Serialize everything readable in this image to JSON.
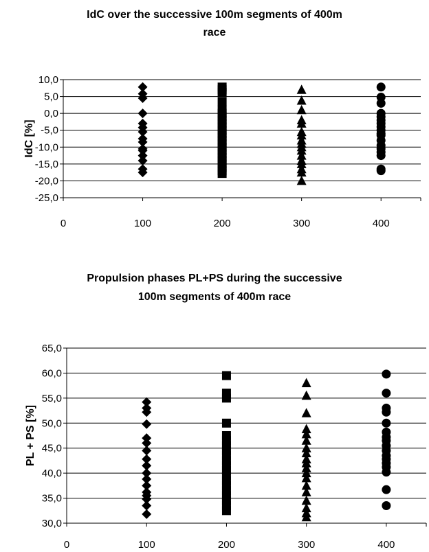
{
  "chart_data": [
    {
      "type": "scatter",
      "title": [
        "IdC over the successive 100m segments of 400m",
        "race"
      ],
      "xlabel": "",
      "ylabel": "IdC [%]",
      "xlim": [
        0,
        450
      ],
      "ylim": [
        -25,
        10
      ],
      "x_ticks": [
        0,
        100,
        200,
        300,
        400
      ],
      "x_tick_labels": [
        "0",
        "100",
        "200",
        "300",
        "400"
      ],
      "y_ticks": [
        10,
        5,
        0,
        -5,
        -10,
        -15,
        -20,
        -25
      ],
      "y_tick_labels": [
        "10,0",
        "5,0",
        "0,0",
        "-5,0",
        "-10,0",
        "-15,0",
        "-20,0",
        "-25,0"
      ],
      "grid": true,
      "series": [
        {
          "marker": "diamond",
          "color": "#000000",
          "x": 100,
          "values": [
            7.8,
            5.8,
            4.5,
            0.0,
            -3.0,
            -4.2,
            -5.5,
            -7.5,
            -8.5,
            -10.5,
            -11.0,
            -12.5,
            -14.0,
            -16.5,
            -17.5
          ]
        },
        {
          "marker": "square",
          "color": "#000000",
          "x": 200,
          "values": [
            7.8,
            7.0,
            6.2,
            3.5,
            1.0,
            0.0,
            -1.0,
            -2.0,
            -3.0,
            -4.0,
            -5.0,
            -6.0,
            -7.0,
            -8.0,
            -9.0,
            -10.0,
            -11.0,
            -12.0,
            -13.0,
            -14.0,
            -15.0,
            -16.0,
            -17.0,
            -17.8
          ]
        },
        {
          "marker": "triangle",
          "color": "#000000",
          "x": 300,
          "values": [
            7.0,
            3.8,
            1.0,
            -2.0,
            -3.0,
            -5.5,
            -6.5,
            -8.0,
            -9.0,
            -10.0,
            -11.0,
            -12.5,
            -14.0,
            -15.0,
            -16.5,
            -17.5,
            -20.0
          ]
        },
        {
          "marker": "circle",
          "color": "#000000",
          "x": 400,
          "values": [
            7.8,
            4.8,
            3.0,
            0.0,
            -1.0,
            -2.0,
            -3.0,
            -4.0,
            -5.0,
            -6.0,
            -6.5,
            -8.0,
            -9.5,
            -10.5,
            -11.5,
            -12.5,
            -16.5,
            -17.0
          ]
        }
      ]
    },
    {
      "type": "scatter",
      "title": [
        "Propulsion phases PL+PS during the successive",
        "100m segments of 400m race"
      ],
      "xlabel": "",
      "ylabel": "PL + PS [%]",
      "xlim": [
        0,
        450
      ],
      "ylim": [
        30,
        65
      ],
      "x_ticks": [
        0,
        100,
        200,
        300,
        400
      ],
      "x_tick_labels": [
        "0",
        "100",
        "200",
        "300",
        "400"
      ],
      "y_ticks": [
        65,
        60,
        55,
        50,
        45,
        40,
        35,
        30
      ],
      "y_tick_labels": [
        "65,0",
        "60,0",
        "55,0",
        "50,0",
        "45,0",
        "40,0",
        "35,0",
        "30,0"
      ],
      "grid": true,
      "series": [
        {
          "marker": "diamond",
          "color": "#000000",
          "x": 100,
          "values": [
            54.2,
            53.0,
            52.2,
            49.8,
            47.0,
            46.0,
            44.5,
            42.8,
            41.5,
            40.0,
            38.8,
            37.5,
            36.2,
            35.5,
            34.8,
            33.5,
            31.8
          ]
        },
        {
          "marker": "square",
          "color": "#000000",
          "x": 200,
          "values": [
            59.5,
            56.0,
            55.0,
            50.0,
            47.5,
            46.5,
            45.5,
            44.5,
            43.5,
            42.5,
            41.5,
            40.5,
            39.5,
            38.5,
            37.5,
            36.5,
            35.5,
            34.5,
            33.5,
            32.5
          ]
        },
        {
          "marker": "triangle",
          "color": "#000000",
          "x": 300,
          "values": [
            58.0,
            55.5,
            52.0,
            48.8,
            47.8,
            46.5,
            45.0,
            44.0,
            42.8,
            42.0,
            41.0,
            40.0,
            39.0,
            37.5,
            36.2,
            34.5,
            33.0,
            32.0,
            31.2
          ]
        },
        {
          "marker": "circle",
          "color": "#000000",
          "x": 400,
          "values": [
            59.8,
            56.0,
            53.0,
            52.2,
            50.0,
            48.2,
            47.2,
            46.5,
            45.5,
            44.5,
            43.5,
            42.8,
            42.0,
            41.2,
            40.2,
            36.7,
            33.5
          ]
        }
      ]
    }
  ]
}
